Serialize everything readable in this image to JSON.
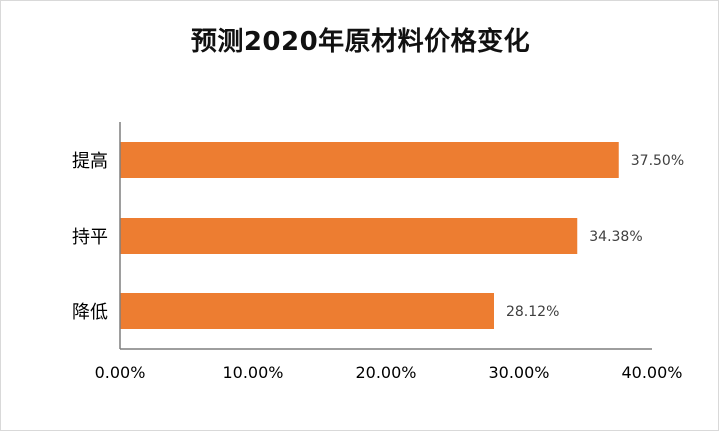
{
  "chart_data": {
    "type": "bar",
    "orientation": "horizontal",
    "title": "预测2020年原材料价格变化",
    "xlabel": "",
    "ylabel": "",
    "categories": [
      "提高",
      "持平",
      "降低"
    ],
    "values": [
      37.5,
      34.38,
      28.12
    ],
    "data_labels": [
      "37.50%",
      "34.38%",
      "28.12%"
    ],
    "xlim": [
      0,
      40
    ],
    "xticks": [
      0,
      10,
      20,
      30,
      40
    ],
    "xtick_labels": [
      "0.00%",
      "10.00%",
      "20.00%",
      "30.00%",
      "40.00%"
    ],
    "grid": false,
    "legend": "none",
    "colors": {
      "bar": "#ED7D31",
      "axis": "#7f7f7f"
    }
  }
}
